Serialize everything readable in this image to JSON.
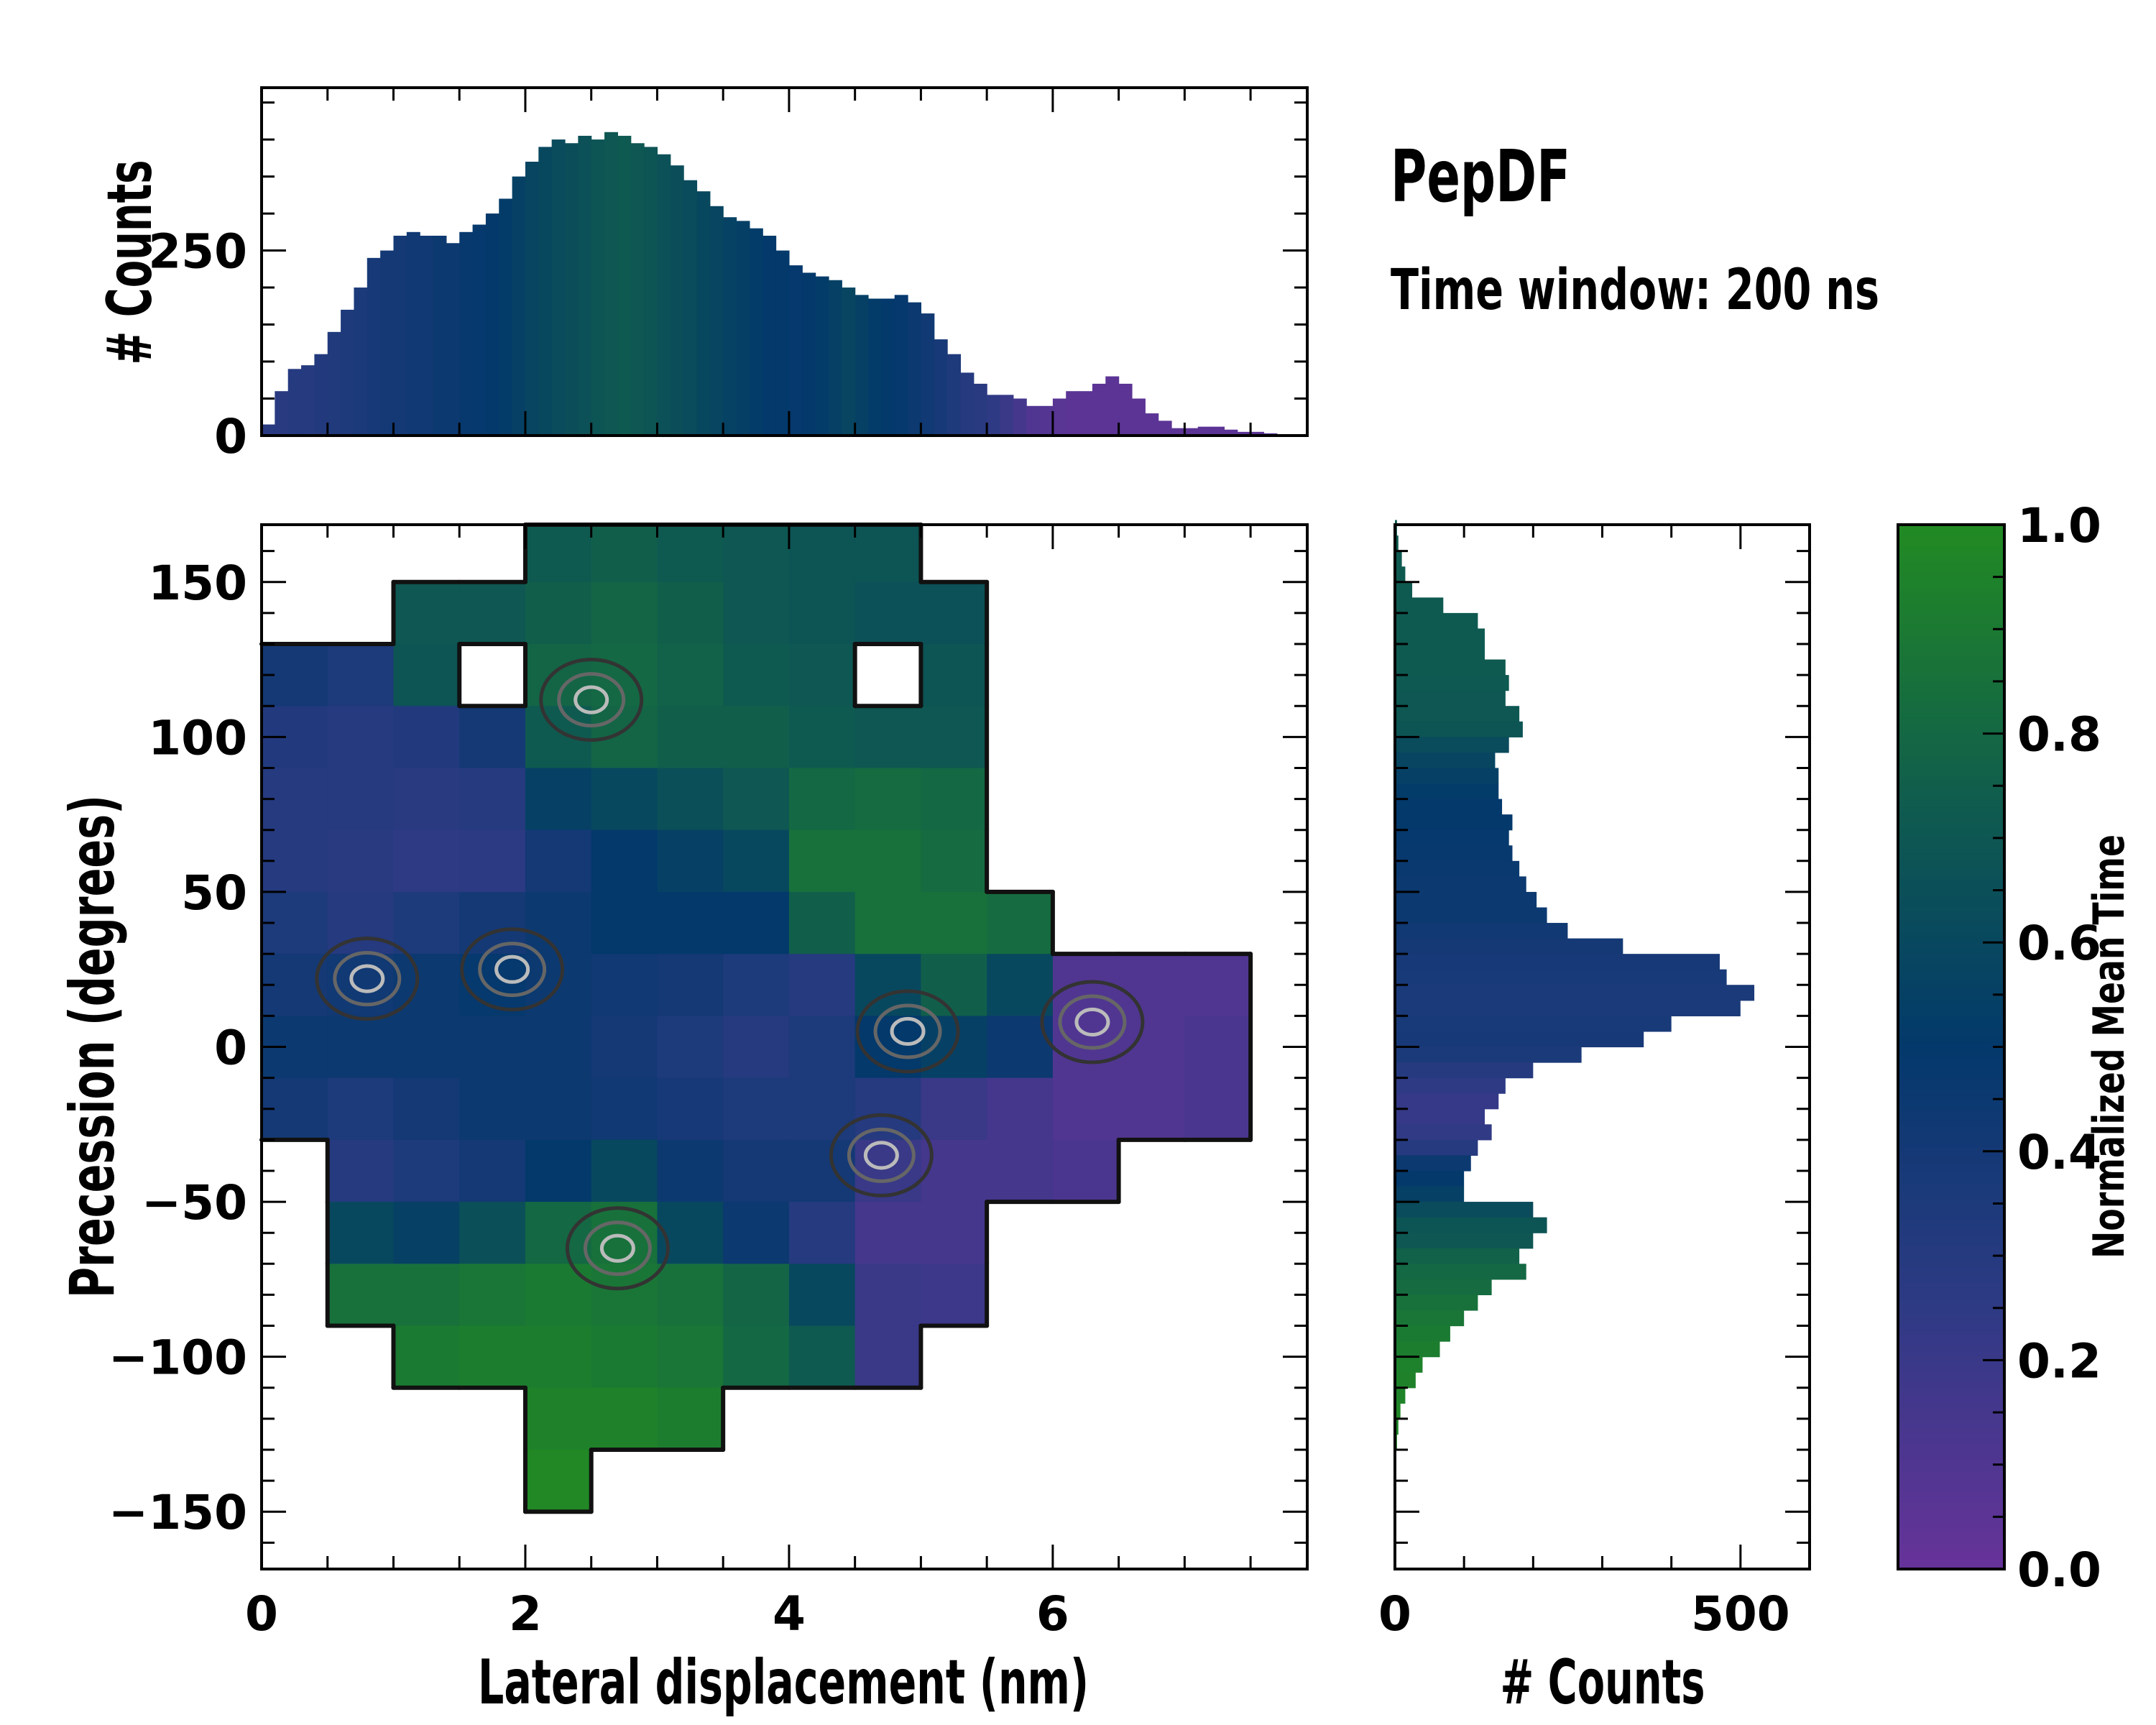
{
  "title": "PepDF",
  "subtitle": "Time window: 200 ns",
  "colormap": {
    "stops": [
      [
        0.0,
        "#663399"
      ],
      [
        0.25,
        "#2e3a84"
      ],
      [
        0.5,
        "#03396b"
      ],
      [
        0.72,
        "#0f5a50"
      ],
      [
        1.0,
        "#228b22"
      ]
    ],
    "label": "Normalized Mean Time",
    "ticks": [
      "0.0",
      "0.2",
      "0.4",
      "0.6",
      "0.8",
      "1.0"
    ],
    "range": [
      0,
      1
    ]
  },
  "chart_data": [
    {
      "type": "heatmap",
      "name": "main",
      "xlabel": "Lateral displacement (nm)",
      "ylabel": "Precession (degrees)",
      "xlim": [
        0,
        7.93
      ],
      "ylim": [
        -168.5,
        168.5
      ],
      "xticks": [
        "0",
        "2",
        "4",
        "6"
      ],
      "yticks": [
        "150",
        "100",
        "50",
        "0",
        "−50",
        "−100",
        "−150"
      ],
      "x_bin_width": 0.5,
      "y_bin_edges_top": [
        170,
        150,
        130,
        110,
        90,
        70,
        50,
        30,
        10,
        -10,
        -30,
        -50,
        -70,
        -90,
        -110,
        -130,
        -150
      ],
      "values_normalized_mean_time": [
        [
          null,
          null,
          null,
          null,
          0.72,
          0.75,
          0.72,
          0.7,
          0.68,
          0.68,
          null,
          null,
          null,
          null,
          null,
          null
        ],
        [
          null,
          null,
          0.7,
          0.7,
          0.75,
          0.78,
          0.75,
          0.7,
          0.68,
          0.66,
          0.66,
          null,
          null,
          null,
          null,
          null
        ],
        [
          0.4,
          0.35,
          0.68,
          null,
          0.78,
          0.8,
          0.76,
          0.72,
          0.7,
          null,
          0.68,
          null,
          null,
          null,
          null,
          null
        ],
        [
          0.32,
          0.3,
          0.32,
          0.4,
          0.72,
          0.78,
          0.75,
          0.75,
          0.72,
          0.7,
          0.7,
          null,
          null,
          null,
          null,
          null
        ],
        [
          0.3,
          0.3,
          0.28,
          0.3,
          0.55,
          0.6,
          0.65,
          0.7,
          0.8,
          0.82,
          0.8,
          null,
          null,
          null,
          null,
          null
        ],
        [
          0.3,
          0.28,
          0.25,
          0.26,
          0.4,
          0.5,
          0.55,
          0.6,
          0.85,
          0.85,
          0.82,
          null,
          null,
          null,
          null,
          null
        ],
        [
          0.35,
          0.3,
          0.35,
          0.4,
          0.45,
          0.5,
          0.5,
          0.5,
          0.75,
          0.85,
          0.85,
          0.82,
          null,
          null,
          null,
          null
        ],
        [
          0.4,
          0.42,
          0.45,
          0.48,
          0.45,
          0.42,
          0.4,
          0.35,
          0.3,
          0.6,
          0.75,
          0.6,
          0.1,
          0.1,
          0.1,
          null
        ],
        [
          0.45,
          0.45,
          0.45,
          0.45,
          0.45,
          0.4,
          0.35,
          0.3,
          0.35,
          0.5,
          0.55,
          0.45,
          0.1,
          0.1,
          0.12,
          null
        ],
        [
          0.4,
          0.35,
          0.4,
          0.45,
          0.45,
          0.42,
          0.38,
          0.35,
          0.35,
          0.3,
          0.2,
          0.15,
          0.1,
          0.1,
          0.12,
          null
        ],
        [
          null,
          0.3,
          0.35,
          0.4,
          0.5,
          0.6,
          0.45,
          0.4,
          0.4,
          0.2,
          0.15,
          0.15,
          0.12,
          null,
          null,
          null
        ],
        [
          null,
          0.6,
          0.55,
          0.65,
          0.8,
          0.85,
          0.6,
          0.45,
          0.3,
          0.15,
          0.15,
          null,
          null,
          null,
          null,
          null
        ],
        [
          null,
          0.85,
          0.85,
          0.88,
          0.9,
          0.88,
          0.85,
          0.78,
          0.6,
          0.2,
          0.18,
          null,
          null,
          null,
          null,
          null
        ],
        [
          null,
          null,
          0.9,
          0.92,
          0.92,
          0.9,
          0.88,
          0.8,
          0.72,
          0.2,
          null,
          null,
          null,
          null,
          null,
          null
        ],
        [
          null,
          null,
          null,
          null,
          0.95,
          0.95,
          0.92,
          null,
          null,
          null,
          null,
          null,
          null,
          null,
          null,
          null
        ],
        [
          null,
          null,
          null,
          null,
          0.98,
          null,
          null,
          null,
          null,
          null,
          null,
          null,
          null,
          null,
          null,
          null
        ]
      ]
    },
    {
      "type": "bar",
      "name": "top-histogram",
      "ylabel": "# Counts",
      "ylim": [
        0,
        470
      ],
      "yticks": [
        "0",
        "250"
      ],
      "bin_width": 0.1,
      "x": [
        0.0,
        0.1,
        0.2,
        0.3,
        0.4,
        0.5,
        0.6,
        0.7,
        0.8,
        0.9,
        1.0,
        1.1,
        1.2,
        1.3,
        1.4,
        1.5,
        1.6,
        1.7,
        1.8,
        1.9,
        2.0,
        2.1,
        2.2,
        2.3,
        2.4,
        2.5,
        2.6,
        2.7,
        2.8,
        2.9,
        3.0,
        3.1,
        3.2,
        3.3,
        3.4,
        3.5,
        3.6,
        3.7,
        3.8,
        3.9,
        4.0,
        4.1,
        4.2,
        4.3,
        4.4,
        4.5,
        4.6,
        4.7,
        4.8,
        4.9,
        5.0,
        5.1,
        5.2,
        5.3,
        5.4,
        5.5,
        5.6,
        5.7,
        5.8,
        5.9,
        6.0,
        6.1,
        6.2,
        6.3,
        6.4,
        6.5,
        6.6,
        6.7,
        6.8,
        6.9,
        7.0,
        7.1,
        7.2,
        7.3,
        7.4,
        7.5,
        7.6
      ],
      "values": [
        15,
        60,
        90,
        95,
        110,
        140,
        170,
        200,
        240,
        250,
        270,
        275,
        270,
        270,
        260,
        275,
        285,
        300,
        320,
        350,
        370,
        390,
        400,
        395,
        405,
        400,
        410,
        405,
        395,
        390,
        380,
        365,
        345,
        330,
        310,
        295,
        290,
        280,
        270,
        250,
        230,
        220,
        215,
        210,
        200,
        190,
        185,
        185,
        190,
        180,
        165,
        130,
        110,
        85,
        70,
        55,
        55,
        50,
        40,
        40,
        50,
        60,
        60,
        70,
        80,
        70,
        50,
        30,
        20,
        10,
        10,
        12,
        12,
        8,
        5,
        5,
        3
      ],
      "mean_time": [
        0.28,
        0.28,
        0.3,
        0.3,
        0.32,
        0.33,
        0.34,
        0.36,
        0.38,
        0.4,
        0.4,
        0.42,
        0.42,
        0.44,
        0.45,
        0.47,
        0.48,
        0.5,
        0.52,
        0.55,
        0.58,
        0.6,
        0.62,
        0.64,
        0.66,
        0.68,
        0.7,
        0.72,
        0.7,
        0.68,
        0.66,
        0.64,
        0.62,
        0.6,
        0.58,
        0.56,
        0.54,
        0.52,
        0.5,
        0.5,
        0.48,
        0.5,
        0.52,
        0.55,
        0.58,
        0.55,
        0.52,
        0.5,
        0.48,
        0.45,
        0.42,
        0.38,
        0.34,
        0.3,
        0.28,
        0.25,
        0.2,
        0.15,
        0.1,
        0.08,
        0.06,
        0.05,
        0.05,
        0.05,
        0.05,
        0.05,
        0.05,
        0.05,
        0.05,
        0.05,
        0.05,
        0.05,
        0.05,
        0.05,
        0.05,
        0.05,
        0.05
      ]
    },
    {
      "type": "bar",
      "name": "right-histogram",
      "orientation": "horizontal",
      "xlabel": "# Counts",
      "xlim": [
        0,
        600
      ],
      "xticks": [
        "0",
        "500"
      ],
      "bin_width": 5,
      "y": [
        165,
        160,
        155,
        150,
        145,
        140,
        135,
        130,
        125,
        120,
        115,
        110,
        105,
        100,
        95,
        90,
        85,
        80,
        75,
        70,
        65,
        60,
        55,
        50,
        45,
        40,
        35,
        30,
        25,
        20,
        15,
        10,
        5,
        0,
        -5,
        -10,
        -15,
        -20,
        -25,
        -30,
        -35,
        -40,
        -45,
        -50,
        -55,
        -60,
        -65,
        -70,
        -75,
        -80,
        -85,
        -90,
        -95,
        -100,
        -105,
        -110,
        -115,
        -120,
        -125,
        -130,
        -135
      ],
      "values": [
        3,
        5,
        10,
        15,
        25,
        70,
        120,
        130,
        130,
        160,
        165,
        160,
        180,
        185,
        165,
        145,
        150,
        150,
        155,
        170,
        165,
        170,
        180,
        190,
        205,
        220,
        250,
        330,
        470,
        480,
        520,
        500,
        400,
        360,
        270,
        200,
        160,
        150,
        130,
        140,
        120,
        110,
        100,
        100,
        200,
        220,
        200,
        180,
        190,
        140,
        120,
        100,
        80,
        65,
        40,
        30,
        15,
        8,
        5,
        3,
        2
      ],
      "mean_time": [
        0.72,
        0.72,
        0.72,
        0.72,
        0.72,
        0.72,
        0.72,
        0.72,
        0.72,
        0.72,
        0.71,
        0.7,
        0.7,
        0.68,
        0.62,
        0.58,
        0.55,
        0.52,
        0.5,
        0.5,
        0.48,
        0.47,
        0.46,
        0.45,
        0.45,
        0.44,
        0.42,
        0.4,
        0.38,
        0.37,
        0.36,
        0.36,
        0.37,
        0.38,
        0.36,
        0.3,
        0.25,
        0.22,
        0.22,
        0.24,
        0.3,
        0.45,
        0.5,
        0.55,
        0.62,
        0.68,
        0.7,
        0.76,
        0.8,
        0.82,
        0.85,
        0.88,
        0.9,
        0.92,
        0.94,
        0.95,
        0.96,
        0.97,
        0.97,
        0.98,
        0.98
      ]
    }
  ]
}
